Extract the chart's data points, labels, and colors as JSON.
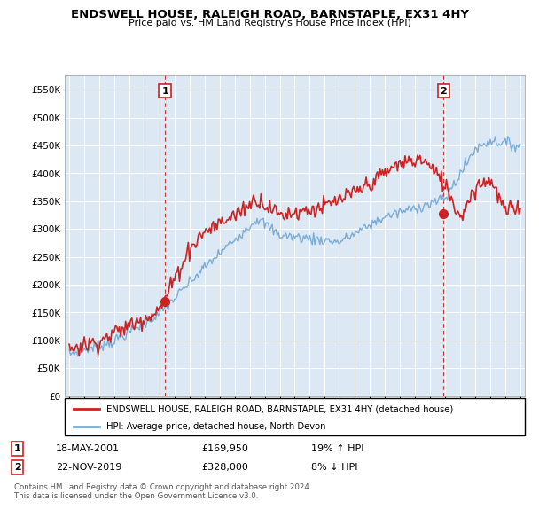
{
  "title": "ENDSWELL HOUSE, RALEIGH ROAD, BARNSTAPLE, EX31 4HY",
  "subtitle": "Price paid vs. HM Land Registry's House Price Index (HPI)",
  "legend_line1": "ENDSWELL HOUSE, RALEIGH ROAD, BARNSTAPLE, EX31 4HY (detached house)",
  "legend_line2": "HPI: Average price, detached house, North Devon",
  "annotation1_date": "18-MAY-2001",
  "annotation1_price": "£169,950",
  "annotation1_hpi": "19% ↑ HPI",
  "annotation2_date": "22-NOV-2019",
  "annotation2_price": "£328,000",
  "annotation2_hpi": "8% ↓ HPI",
  "footer": "Contains HM Land Registry data © Crown copyright and database right 2024.\nThis data is licensed under the Open Government Licence v3.0.",
  "hpi_color": "#7aacd6",
  "price_color": "#cc2222",
  "annotation_box_color": "#cc2222",
  "plot_bg_color": "#dce9f5",
  "grid_color": "#ffffff",
  "ylim": [
    0,
    575000
  ],
  "yticks": [
    0,
    50000,
    100000,
    150000,
    200000,
    250000,
    300000,
    350000,
    400000,
    450000,
    500000,
    550000
  ],
  "p1_x": 2001.37,
  "p1_y": 169950,
  "p2_x": 2019.89,
  "p2_y": 328000,
  "xmin": 1995,
  "xmax": 2025
}
